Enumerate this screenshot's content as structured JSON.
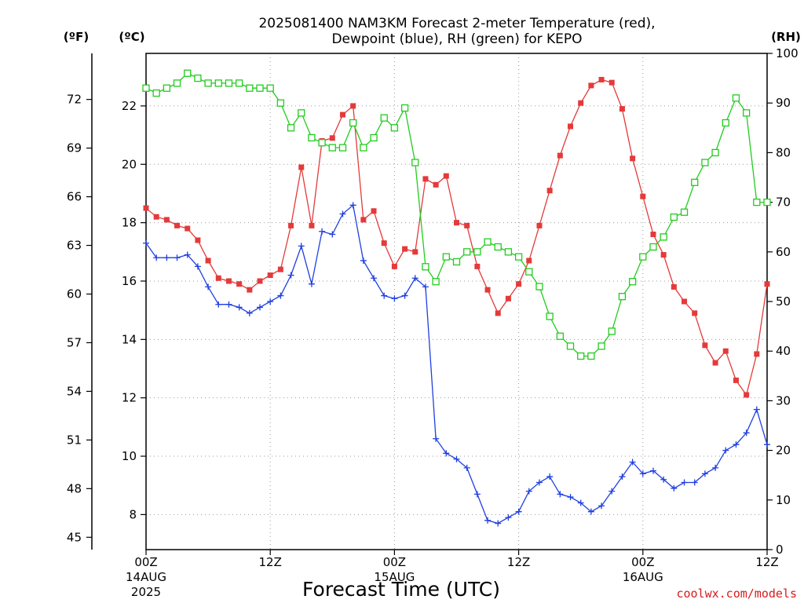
{
  "chart_data": {
    "type": "line",
    "title": [
      "2025081400 NAM3KM Forecast 2-meter Temperature (red),",
      "Dewpoint (blue), RH (green) for KEPO"
    ],
    "xlabel": "Forecast Time (UTC)",
    "credit": "coolwx.com/models",
    "x_unit": "forecast hour",
    "xlim": [
      0,
      60
    ],
    "x_ticks": [
      {
        "x": 0,
        "label": "00Z",
        "date": "14AUG",
        "year": "2025"
      },
      {
        "x": 12,
        "label": "12Z"
      },
      {
        "x": 24,
        "label": "00Z",
        "date": "15AUG"
      },
      {
        "x": 36,
        "label": "12Z"
      },
      {
        "x": 48,
        "label": "00Z",
        "date": "16AUG"
      },
      {
        "x": 60,
        "label": "12Z"
      }
    ],
    "y_left_c": {
      "label": "(ºC)",
      "lim": [
        6.8,
        23.8
      ],
      "ticks": [
        8,
        10,
        12,
        14,
        16,
        18,
        20,
        22
      ]
    },
    "y_left_f": {
      "label": "(ºF)",
      "ticks": [
        45,
        48,
        51,
        54,
        57,
        60,
        63,
        66,
        69,
        72
      ]
    },
    "y_right": {
      "label": "(RH)",
      "lim": [
        0,
        100
      ],
      "ticks": [
        0,
        10,
        20,
        30,
        40,
        50,
        60,
        70,
        80,
        90,
        100
      ]
    },
    "grid": true,
    "series": [
      {
        "name": "Temperature",
        "axis": "C",
        "color": "#e43a3a",
        "marker": "filled-square",
        "values": [
          18.5,
          18.2,
          18.1,
          17.9,
          17.8,
          17.4,
          16.7,
          16.1,
          16.0,
          15.9,
          15.7,
          16.0,
          16.2,
          16.4,
          17.9,
          19.9,
          17.9,
          20.8,
          20.9,
          21.7,
          22.0,
          18.1,
          18.4,
          17.3,
          16.5,
          17.1,
          17.0,
          19.5,
          19.3,
          19.6,
          18.0,
          17.9,
          16.5,
          15.7,
          14.9,
          15.4,
          15.9,
          16.7,
          17.9,
          19.1,
          20.3,
          21.3,
          22.1,
          22.7,
          22.9,
          22.8,
          21.9,
          20.2,
          18.9,
          17.6,
          16.9,
          15.8,
          15.3,
          14.9,
          13.8,
          13.2,
          13.6,
          12.6,
          12.1,
          13.5,
          15.9
        ]
      },
      {
        "name": "Dewpoint",
        "axis": "C",
        "color": "#1f3fe0",
        "marker": "plus",
        "values": [
          17.3,
          16.8,
          16.8,
          16.8,
          16.9,
          16.5,
          15.8,
          15.2,
          15.2,
          15.1,
          14.9,
          15.1,
          15.3,
          15.5,
          16.2,
          17.2,
          15.9,
          17.7,
          17.6,
          18.3,
          18.6,
          16.7,
          16.1,
          15.5,
          15.4,
          15.5,
          16.1,
          15.8,
          10.6,
          10.1,
          9.9,
          9.6,
          8.7,
          7.8,
          7.7,
          7.9,
          8.1,
          8.8,
          9.1,
          9.3,
          8.7,
          8.6,
          8.4,
          8.1,
          8.3,
          8.8,
          9.3,
          9.8,
          9.4,
          9.5,
          9.2,
          8.9,
          9.1,
          9.1,
          9.4,
          9.6,
          10.2,
          10.4,
          10.8,
          11.6,
          10.4
        ]
      },
      {
        "name": "RH",
        "axis": "RH",
        "color": "#22cc1e",
        "marker": "open-square",
        "values": [
          93,
          92,
          93,
          94,
          96,
          95,
          94,
          94,
          94,
          94,
          93,
          93,
          93,
          90,
          85,
          88,
          83,
          82,
          81,
          81,
          86,
          81,
          83,
          87,
          85,
          89,
          78,
          57,
          54,
          59,
          58,
          60,
          60,
          62,
          61,
          60,
          59,
          56,
          53,
          47,
          43,
          41,
          39,
          39,
          41,
          44,
          51,
          54,
          59,
          61,
          63,
          67,
          68,
          74,
          78,
          80,
          86,
          91,
          88,
          70,
          70
        ]
      }
    ]
  }
}
